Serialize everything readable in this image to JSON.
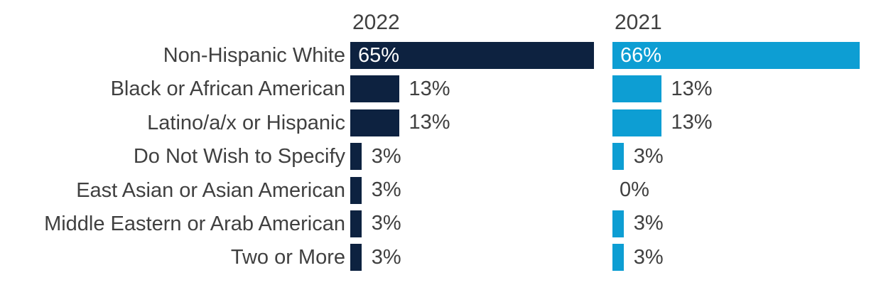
{
  "chart_data": {
    "type": "bar",
    "orientation": "horizontal",
    "title": "",
    "categories": [
      "Non-Hispanic White",
      "Black or African American",
      "Latino/a/x or Hispanic",
      "Do Not Wish to Specify",
      "East Asian or Asian American",
      "Middle Eastern or Arab American",
      "Two or More"
    ],
    "series": [
      {
        "name": "2022",
        "color": "#0d2240",
        "values": [
          65,
          13,
          13,
          3,
          3,
          3,
          3
        ],
        "labels": [
          "65%",
          "13%",
          "13%",
          "3%",
          "3%",
          "3%",
          "3%"
        ]
      },
      {
        "name": "2021",
        "color": "#0d9ed3",
        "values": [
          66,
          13,
          13,
          3,
          0,
          3,
          3
        ],
        "labels": [
          "66%",
          "13%",
          "13%",
          "3%",
          "0%",
          "3%",
          "3%"
        ]
      }
    ],
    "value_suffix": "%",
    "xlim": [
      0,
      70
    ],
    "grid": false,
    "legend_position": "column-headers",
    "value_label_colors": {
      "inside": "#ffffff",
      "outside": "#404040"
    },
    "inside_label_threshold": 50
  }
}
